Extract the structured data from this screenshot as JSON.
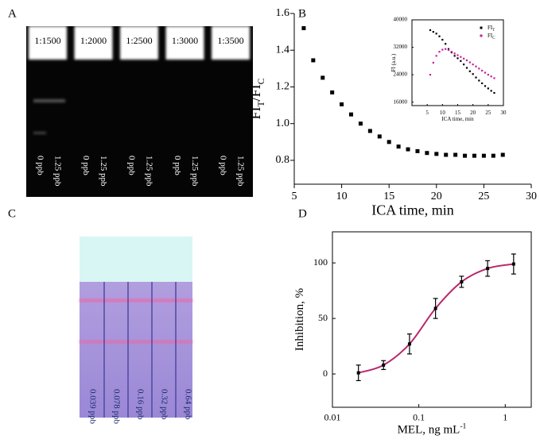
{
  "panel_labels": [
    "A",
    "B",
    "C",
    "D"
  ],
  "gel": {
    "dilutions": [
      "1:1500",
      "1:2000",
      "1:2500",
      "1:3000",
      "1:3500"
    ],
    "lanes": [
      "0 ppb",
      "1.25 ppb"
    ]
  },
  "strip": {
    "lanes": [
      "0.039 ppb",
      "0.078 ppb",
      "0.16 ppb",
      "0.32 ppb",
      "0.64 ppb"
    ]
  },
  "chart_data": [
    {
      "type": "scatter",
      "xlabel": "ICA time, min",
      "ylabel": [
        "FI",
        "T",
        "/FI",
        "C"
      ],
      "x": [
        6,
        7,
        8,
        9,
        10,
        11,
        12,
        13,
        14,
        15,
        16,
        17,
        18,
        19,
        20,
        21,
        22,
        23,
        24,
        25,
        26,
        27
      ],
      "values": [
        1.52,
        1.345,
        1.25,
        1.17,
        1.105,
        1.05,
        1.0,
        0.96,
        0.93,
        0.9,
        0.875,
        0.86,
        0.85,
        0.84,
        0.835,
        0.83,
        0.83,
        0.825,
        0.825,
        0.825,
        0.825,
        0.83
      ],
      "color": "#000000",
      "xlim": [
        5,
        30
      ],
      "xticks": [
        5,
        10,
        15,
        20,
        25,
        30
      ],
      "ylim": [
        0.67,
        1.6
      ],
      "yticks": [
        0.8,
        {
          "value": 1,
          "label": "1.0"
        },
        1.2,
        1.4,
        1.6
      ]
    },
    {
      "type": "scatter",
      "xlabel": "ICA time, min",
      "ylabel": "FI (a.u.)",
      "legend": "upper right",
      "x": [
        6,
        7,
        8,
        9,
        10,
        11,
        12,
        13,
        14,
        15,
        16,
        17,
        18,
        19,
        20,
        21,
        22,
        23,
        24,
        25,
        26,
        27
      ],
      "series": [
        {
          "name": [
            "FI",
            "T"
          ],
          "color": "#000000",
          "values": [
            37000,
            36500,
            36000,
            35200,
            34200,
            33000,
            31500,
            30500,
            29500,
            28800,
            28000,
            27000,
            26000,
            25000,
            24200,
            23200,
            22300,
            21500,
            20700,
            20000,
            19300,
            18700
          ]
        },
        {
          "name": [
            "FI",
            "C"
          ],
          "color": "#c0209a",
          "values": [
            24000,
            27500,
            29500,
            30700,
            31300,
            31500,
            31200,
            30700,
            30200,
            29700,
            29200,
            28700,
            28200,
            27600,
            27000,
            26400,
            25800,
            25200,
            24600,
            24000,
            23500,
            23000
          ]
        }
      ],
      "xlim": [
        0,
        30
      ],
      "xticks": [
        5,
        10,
        15,
        20,
        25,
        30
      ],
      "ylim": [
        15000,
        40000
      ],
      "yticks": [
        16000,
        24000,
        32000,
        40000
      ]
    },
    {
      "type": "scatter",
      "xlabel": [
        "MEL, ng mL",
        "-1"
      ],
      "ylabel": "Inhibition, %",
      "xscale": "log",
      "x": [
        0.02,
        0.039,
        0.078,
        0.156,
        0.3125,
        0.625,
        1.25
      ],
      "values": [
        1,
        8,
        27,
        59,
        83,
        95,
        99
      ],
      "errors": [
        7,
        4,
        9,
        9,
        5,
        7,
        9
      ],
      "color": "#000000",
      "line_color": "#b8286e",
      "xlim": [
        0.01,
        2
      ],
      "xticks": [
        0.01,
        0.1,
        1
      ],
      "ylim": [
        -30,
        128
      ],
      "yticks": [
        0,
        50,
        100
      ]
    }
  ]
}
